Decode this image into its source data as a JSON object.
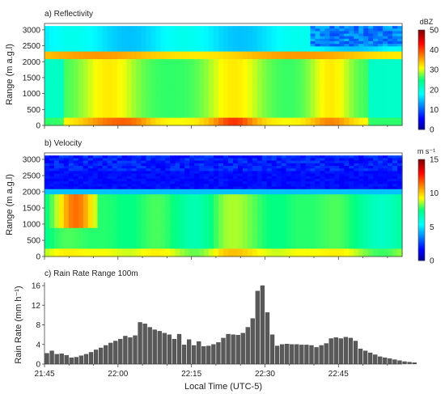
{
  "chart_data": [
    {
      "type": "heatmap",
      "title": "a) Reflectivity",
      "ylabel": "Range (m a.g.l)",
      "ylim": [
        0,
        3200
      ],
      "yticks": [
        "0",
        "500",
        "1000",
        "1500",
        "2000",
        "2500",
        "3000"
      ],
      "xlim": [
        "21:45",
        "22:58"
      ],
      "colorbar": {
        "unit": "dBZ",
        "range": [
          0,
          50
        ],
        "ticks": [
          "0",
          "10",
          "20",
          "30",
          "40",
          "50"
        ]
      },
      "description_values": {
        "cloud_top_m": 3100,
        "melting_layer_m": [
          2050,
          2300
        ],
        "melting_layer_dbz": 35,
        "rain_below_dbz": [
          25,
          33
        ],
        "upper_dbz": 17,
        "near_ground_peak_dbz": 40
      }
    },
    {
      "type": "heatmap",
      "title": "b) Velocity",
      "ylabel": "Range (m a.g.l)",
      "ylim": [
        0,
        3200
      ],
      "yticks": [
        "0",
        "500",
        "1000",
        "1500",
        "2000",
        "2500",
        "3000"
      ],
      "xlim": [
        "21:45",
        "22:58"
      ],
      "colorbar": {
        "unit": "m s⁻¹",
        "range": [
          0,
          15
        ],
        "ticks": [
          "0",
          "5",
          "10",
          "15"
        ]
      },
      "description_values": {
        "upper_velocity": 1.5,
        "transition_m": 2000,
        "rain_velocity": [
          6.5,
          8.5
        ],
        "strong_cores_velocity": 11
      }
    },
    {
      "type": "bar",
      "title": "c) Rain Rate Range 100m",
      "ylabel": "Rain Rate (mm h⁻¹)",
      "xlabel": "Local Time (UTC-5)",
      "ylim": [
        0,
        16
      ],
      "yticks": [
        "0",
        "4",
        "8",
        "12",
        "16"
      ],
      "xticks": [
        "21:45",
        "22:00",
        "22:15",
        "22:30",
        "22:45"
      ],
      "bar_interval_min": 1,
      "start_time": "21:45",
      "values": [
        2.2,
        2.7,
        2.0,
        2.1,
        1.8,
        1.3,
        1.4,
        1.7,
        2.0,
        2.4,
        2.9,
        3.3,
        3.8,
        4.3,
        4.7,
        5.1,
        5.7,
        5.4,
        5.8,
        8.5,
        8.2,
        7.5,
        7.0,
        6.7,
        6.3,
        6.0,
        5.1,
        6.1,
        3.9,
        5.0,
        3.8,
        4.6,
        3.6,
        3.7,
        4.0,
        4.4,
        5.3,
        6.1,
        6.0,
        5.9,
        6.3,
        7.5,
        9.3,
        14.9,
        16.0,
        10.5,
        6.0,
        3.7,
        4.0,
        4.1,
        4.0,
        4.0,
        3.9,
        3.9,
        3.8,
        3.4,
        3.8,
        4.2,
        5.2,
        5.4,
        5.2,
        5.5,
        5.3,
        4.7,
        3.1,
        2.7,
        2.3,
        1.9,
        1.5,
        1.3,
        1.1,
        0.9,
        0.7,
        0.5,
        0.4,
        0.3
      ]
    }
  ]
}
